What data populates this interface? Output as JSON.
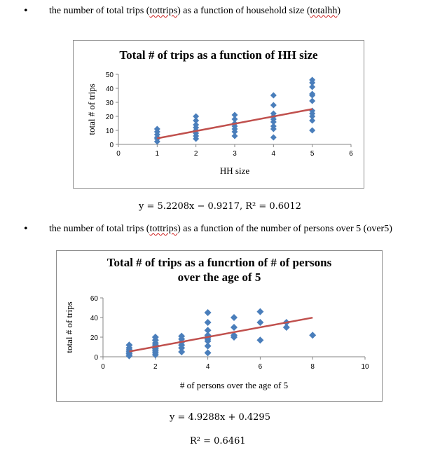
{
  "bullets": [
    {
      "prefix": "the number of total trips (",
      "var1": "tottrips",
      "middle": ") as a function of household size (",
      "var2": "totalhh",
      "suffix": ")"
    },
    {
      "prefix": "the number of total trips (",
      "var1": "tottrips",
      "middle": ") as a function of the number of persons over 5 (over5)",
      "var2": "",
      "suffix": ""
    }
  ],
  "equations": {
    "chart1": "y = 5.2208x − 0.9217, R² = 0.6012",
    "chart2_line1": "y = 4.9288x + 0.4295",
    "chart2_line2": "R² = 0.6461"
  },
  "colors": {
    "points": "#4a7ebb",
    "trendline": "#c0504d",
    "axis": "#868686",
    "border": "#8c8c8c"
  },
  "chart_data": [
    {
      "type": "scatter",
      "title": "Total # of trips as a function of HH size",
      "xlabel": "HH size",
      "ylabel": "total # of trips",
      "xlim": [
        0,
        6
      ],
      "ylim": [
        0,
        50
      ],
      "xticks": [
        0,
        1,
        2,
        3,
        4,
        5,
        6
      ],
      "yticks": [
        0,
        10,
        20,
        30,
        40,
        50
      ],
      "grid": false,
      "series": [
        {
          "points": [
            [
              1,
              2
            ],
            [
              1,
              4
            ],
            [
              1,
              5
            ],
            [
              1,
              7
            ],
            [
              1,
              9
            ],
            [
              1,
              11
            ],
            [
              2,
              4
            ],
            [
              2,
              6
            ],
            [
              2,
              8
            ],
            [
              2,
              10
            ],
            [
              2,
              12
            ],
            [
              2,
              14
            ],
            [
              2,
              17
            ],
            [
              2,
              20
            ],
            [
              3,
              6
            ],
            [
              3,
              9
            ],
            [
              3,
              11
            ],
            [
              3,
              13
            ],
            [
              3,
              15
            ],
            [
              3,
              18
            ],
            [
              3,
              21
            ],
            [
              4,
              5
            ],
            [
              4,
              11
            ],
            [
              4,
              13
            ],
            [
              4,
              16
            ],
            [
              4,
              18
            ],
            [
              4,
              20
            ],
            [
              4,
              22
            ],
            [
              4,
              28
            ],
            [
              4,
              35
            ],
            [
              5,
              10
            ],
            [
              5,
              17
            ],
            [
              5,
              20
            ],
            [
              5,
              22
            ],
            [
              5,
              24
            ],
            [
              5,
              31
            ],
            [
              5,
              35
            ],
            [
              5,
              36
            ],
            [
              5,
              41
            ],
            [
              5,
              44
            ],
            [
              5,
              46
            ]
          ]
        }
      ],
      "trendline": {
        "slope": 5.2208,
        "intercept": -0.9217,
        "x_range": [
          1,
          5
        ]
      }
    },
    {
      "type": "scatter",
      "title_lines": [
        "Total # of trips as a funcrtion of # of persons",
        "over the age of 5"
      ],
      "xlabel": "# of persons  over the age of 5",
      "ylabel": "total # of trips",
      "xlim": [
        0,
        10
      ],
      "ylim": [
        0,
        60
      ],
      "xticks": [
        0,
        2,
        4,
        6,
        8,
        10
      ],
      "yticks": [
        0,
        20,
        40,
        60
      ],
      "grid": false,
      "series": [
        {
          "points": [
            [
              1,
              1
            ],
            [
              1,
              3
            ],
            [
              1,
              5
            ],
            [
              1,
              7
            ],
            [
              1,
              9
            ],
            [
              1,
              12
            ],
            [
              2,
              2
            ],
            [
              2,
              4
            ],
            [
              2,
              6
            ],
            [
              2,
              8
            ],
            [
              2,
              10
            ],
            [
              2,
              12
            ],
            [
              2,
              14
            ],
            [
              2,
              17
            ],
            [
              2,
              20
            ],
            [
              3,
              5
            ],
            [
              3,
              9
            ],
            [
              3,
              12
            ],
            [
              3,
              15
            ],
            [
              3,
              18
            ],
            [
              3,
              21
            ],
            [
              4,
              4
            ],
            [
              4,
              11
            ],
            [
              4,
              16
            ],
            [
              4,
              18
            ],
            [
              4,
              20
            ],
            [
              4,
              22
            ],
            [
              4,
              27
            ],
            [
              4,
              35
            ],
            [
              4,
              45
            ],
            [
              5,
              20
            ],
            [
              5,
              22
            ],
            [
              5,
              30
            ],
            [
              5,
              40
            ],
            [
              6,
              17
            ],
            [
              6,
              35
            ],
            [
              6,
              46
            ],
            [
              7,
              30
            ],
            [
              7,
              35
            ],
            [
              8,
              22
            ]
          ]
        }
      ],
      "trendline": {
        "slope": 4.9288,
        "intercept": 0.4295,
        "x_range": [
          1,
          8
        ]
      }
    }
  ]
}
